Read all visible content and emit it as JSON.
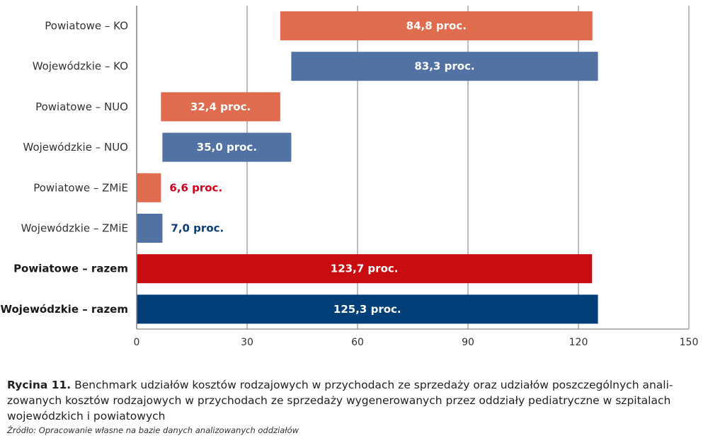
{
  "chart_data": {
    "type": "bar",
    "orientation": "horizontal",
    "stacked_floating": true,
    "categories": [
      "Powiatowe – KO",
      "Wojewódzkie – KO",
      "Powiatowe – NUO",
      "Wojewódzkie – NUO",
      "Powiatowe – ZMiE",
      "Wojewódzkie – ZMiE",
      "Powiatowe – razem",
      "Wojewódzkie – razem"
    ],
    "bold_categories": [
      "Powiatowe – razem",
      "Wojewódzkie – razem"
    ],
    "bars": [
      {
        "category": "Powiatowe – KO",
        "start": 39.0,
        "value": 84.8,
        "label": "84,8 proc.",
        "color": "#e06c50",
        "label_color": "#ffffff",
        "label_inside": true
      },
      {
        "category": "Wojewódzkie – KO",
        "start": 42.0,
        "value": 83.3,
        "label": "83,3 proc.",
        "color": "#5272a3",
        "label_color": "#ffffff",
        "label_inside": true
      },
      {
        "category": "Powiatowe – NUO",
        "start": 6.6,
        "value": 32.4,
        "label": "32,4 proc.",
        "color": "#e06c50",
        "label_color": "#ffffff",
        "label_inside": true
      },
      {
        "category": "Wojewódzkie – NUO",
        "start": 7.0,
        "value": 35.0,
        "label": "35,0 proc.",
        "color": "#5272a3",
        "label_color": "#ffffff",
        "label_inside": true
      },
      {
        "category": "Powiatowe – ZMiE",
        "start": 0,
        "value": 6.6,
        "label": "6,6 proc.",
        "color": "#e06c50",
        "label_color": "#d0021b",
        "label_inside": false
      },
      {
        "category": "Wojewódzkie – ZMiE",
        "start": 0,
        "value": 7.0,
        "label": "7,0 proc.",
        "color": "#5272a3",
        "label_color": "#0b3d78",
        "label_inside": false
      },
      {
        "category": "Powiatowe – razem",
        "start": 0,
        "value": 123.7,
        "label": "123,7 proc.",
        "color": "#c90c0f",
        "label_color": "#ffffff",
        "label_inside": true
      },
      {
        "category": "Wojewódzkie – razem",
        "start": 0,
        "value": 125.3,
        "label": "125,3 proc.",
        "color": "#023e78",
        "label_color": "#ffffff",
        "label_inside": true
      }
    ],
    "xlim": [
      0,
      150
    ],
    "xticks": [
      0,
      30,
      60,
      90,
      120,
      150
    ],
    "xtick_labels": [
      "0",
      "30",
      "60",
      "90",
      "120",
      "150"
    ],
    "grid": "vertical",
    "xlabel": "",
    "ylabel": "",
    "title": ""
  },
  "caption": {
    "prefix": "Rycina 11.",
    "text": " Benchmark udziałów kosztów rodzajowych w przychodach ze sprzedaży oraz udziałów poszczególnych anali-zowanych kosztów rodzajowych w przychodach ze sprzedaży wygenerowanych przez oddziały pediatryczne w szpitalach wojewódzkich i powiatowych",
    "source": "Źródło: Opracowanie własne na bazie danych analizowanych oddziałów"
  }
}
